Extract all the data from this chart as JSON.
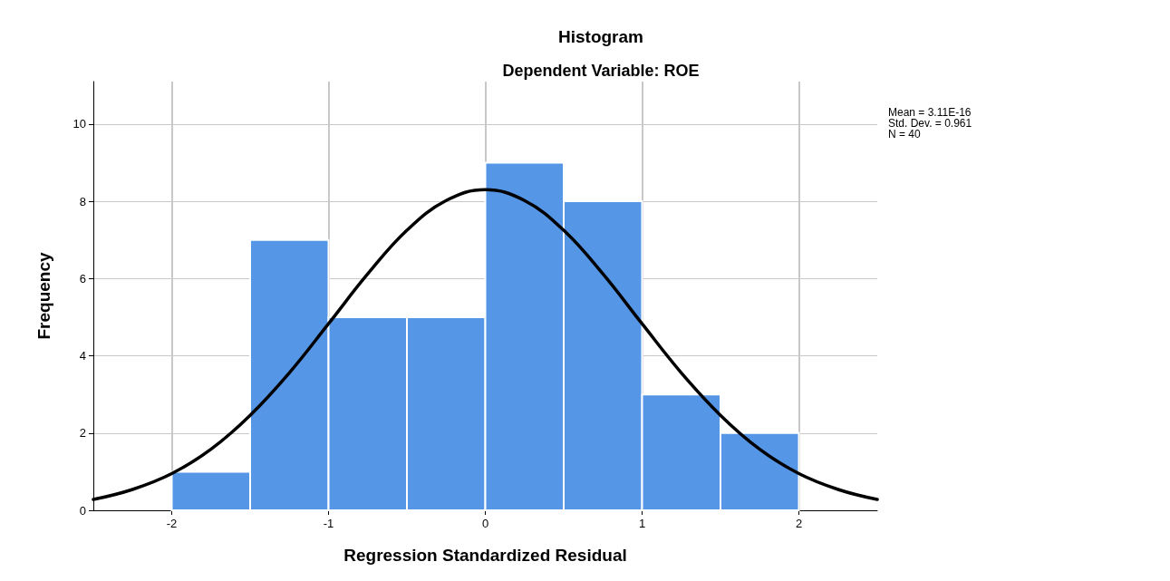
{
  "chart_data": {
    "type": "histogram",
    "title": "Histogram",
    "subtitle": "Dependent Variable: ROE",
    "xlabel": "Regression Standardized Residual",
    "ylabel": "Frequency",
    "xlim": [
      -2.5,
      2.5
    ],
    "xticks": [
      -2,
      -1,
      0,
      1,
      2
    ],
    "ylim": [
      0,
      11.1
    ],
    "yticks": [
      0,
      2,
      4,
      6,
      8,
      10
    ],
    "grid": true,
    "series": [
      {
        "color": "#5596e6",
        "bins": [
          -2,
          -1.5,
          -1,
          -0.5,
          0,
          0.5,
          1,
          1.5,
          2
        ],
        "values": [
          1,
          7,
          5,
          5,
          9,
          8,
          3,
          2
        ]
      },
      {
        "type": "line",
        "color": "#000000",
        "x": [
          -2.5,
          -2.25,
          -2,
          -1.75,
          -1.5,
          -1.25,
          -1,
          -0.75,
          -0.5,
          -0.25,
          0,
          0.25,
          0.5,
          0.75,
          1,
          1.25,
          1.5,
          1.75,
          2,
          2.25,
          2.5
        ],
        "values": [
          0.28,
          0.54,
          0.95,
          1.58,
          2.46,
          3.56,
          4.83,
          6.12,
          7.25,
          8.02,
          8.3,
          8.02,
          7.25,
          6.12,
          4.83,
          3.56,
          2.46,
          1.58,
          0.95,
          0.54,
          0.28
        ]
      }
    ],
    "annotations": [
      "Mean = 3.11E-16",
      "Std. Dev. = 0.961",
      "N = 40"
    ]
  }
}
